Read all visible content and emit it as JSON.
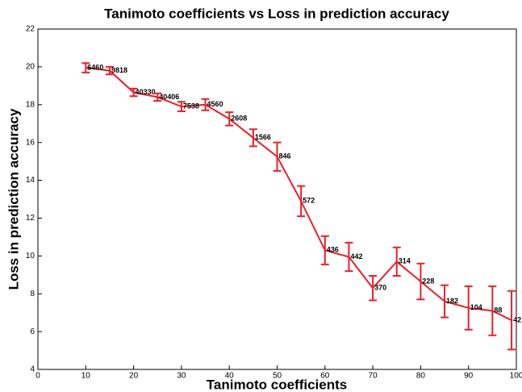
{
  "chart_data": {
    "type": "line",
    "title": "Tanimoto coefficients vs Loss in prediction accuracy",
    "x_label": "Tanimoto coefficients",
    "y_label": "Loss in prediction accuracy",
    "x": [
      10,
      15,
      20,
      25,
      30,
      35,
      40,
      45,
      50,
      55,
      60,
      65,
      70,
      75,
      80,
      85,
      90,
      95,
      99
    ],
    "series": [
      {
        "name": "Loss",
        "color": "#e8202a",
        "values": [
          19.95,
          19.8,
          18.65,
          18.4,
          17.9,
          18.0,
          17.25,
          16.25,
          15.25,
          12.9,
          10.3,
          9.95,
          8.3,
          9.7,
          8.65,
          7.6,
          7.25,
          7.1,
          6.6
        ],
        "errors": [
          0.25,
          0.2,
          0.2,
          0.2,
          0.25,
          0.3,
          0.35,
          0.45,
          0.75,
          0.8,
          0.75,
          0.75,
          0.65,
          0.75,
          0.95,
          0.85,
          1.15,
          1.3,
          1.55
        ],
        "annotations": [
          "6460",
          "9818",
          "40330",
          "40406",
          "7538",
          "4560",
          "2608",
          "1566",
          "846",
          "572",
          "436",
          "442",
          "370",
          "314",
          "228",
          "182",
          "104",
          "88",
          "42"
        ]
      }
    ],
    "xlim": [
      0,
      100
    ],
    "xticks": [
      0,
      10,
      20,
      30,
      40,
      50,
      60,
      70,
      80,
      90,
      100
    ],
    "ylim": [
      4,
      22
    ],
    "yticks": [
      4,
      6,
      8,
      10,
      12,
      14,
      16,
      18,
      20,
      22
    ],
    "grid": false
  }
}
